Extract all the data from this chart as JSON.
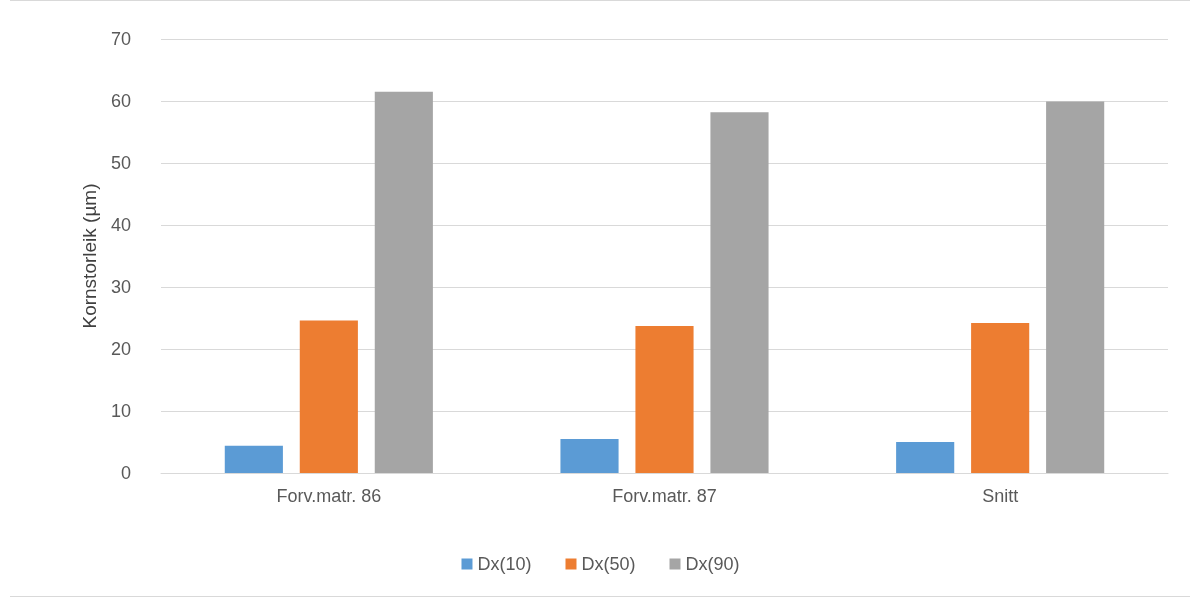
{
  "chart_data": {
    "type": "bar",
    "ylabel": "Kornstorleik (µm)",
    "categories": [
      "Forv.matr. 86",
      "Forv.matr. 87",
      "Snitt"
    ],
    "series": [
      {
        "name": "Dx(10)",
        "color": "#5b9bd5",
        "values": [
          4.4,
          5.5,
          5.0
        ]
      },
      {
        "name": "Dx(50)",
        "color": "#ed7d31",
        "values": [
          24.6,
          23.7,
          24.2
        ]
      },
      {
        "name": "Dx(90)",
        "color": "#a5a5a5",
        "values": [
          61.5,
          58.2,
          59.9
        ]
      }
    ],
    "ylim": [
      0,
      70
    ],
    "yticks": [
      0,
      10,
      20,
      30,
      40,
      50,
      60,
      70
    ],
    "grid": "y",
    "legend": "bottom"
  }
}
